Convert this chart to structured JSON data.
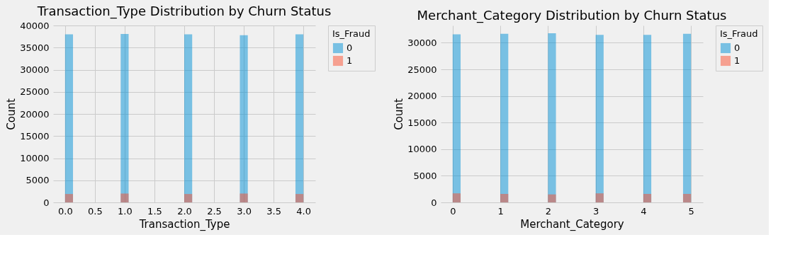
{
  "chart_data": [
    {
      "type": "histogram",
      "title": "Transaction_Type Distribution by Churn Status",
      "xlabel": "Transaction_Type",
      "ylabel": "Count",
      "legend_title": "Is_Fraud",
      "bins": [
        0,
        0.1333,
        0.2667,
        0.4,
        0.5333,
        0.6667,
        0.8,
        0.9333,
        1.0667,
        1.2,
        1.3333,
        1.4667,
        1.6,
        1.7333,
        1.8667,
        2,
        2.1333,
        2.2667,
        2.4,
        2.5333,
        2.6667,
        2.8,
        2.9333,
        3.0667,
        3.2,
        3.3333,
        3.4667,
        3.6,
        3.7333,
        3.8667,
        4
      ],
      "series": [
        {
          "name": "0",
          "color": "#008fd5",
          "values": [
            38000,
            0,
            0,
            0,
            0,
            0,
            0,
            38100,
            0,
            0,
            0,
            0,
            0,
            0,
            0,
            38000,
            0,
            0,
            0,
            0,
            0,
            0,
            37800,
            0,
            0,
            0,
            0,
            0,
            0,
            38000
          ]
        },
        {
          "name": "1",
          "color": "#fc4f30",
          "values": [
            1900,
            0,
            0,
            0,
            0,
            0,
            0,
            2000,
            0,
            0,
            0,
            0,
            0,
            0,
            0,
            1900,
            0,
            0,
            0,
            0,
            0,
            0,
            2000,
            0,
            0,
            0,
            0,
            0,
            0,
            1900
          ]
        }
      ],
      "xlim": [
        -0.2,
        4.2
      ],
      "xticks": [
        {
          "value": 0,
          "label": "0.0"
        },
        0.5,
        {
          "value": 1,
          "label": "1.0"
        },
        1.5,
        {
          "value": 2,
          "label": "2.0"
        },
        2.5,
        {
          "value": 3,
          "label": "3.0"
        },
        3.5,
        {
          "value": 4,
          "label": "4.0"
        }
      ],
      "ylim": [
        0,
        40000
      ],
      "yticks": [
        0,
        5000,
        10000,
        15000,
        20000,
        25000,
        30000,
        35000,
        40000
      ],
      "grid": true,
      "legend": "top right"
    },
    {
      "type": "histogram",
      "title": "Merchant_Category Distribution by Churn Status",
      "xlabel": "Merchant_Category",
      "ylabel": "Count",
      "legend_title": "Is_Fraud",
      "bins": [
        0,
        0.1667,
        0.3333,
        0.5,
        0.6667,
        0.8333,
        1,
        1.1667,
        1.3333,
        1.5,
        1.6667,
        1.8333,
        2,
        2.1667,
        2.3333,
        2.5,
        2.6667,
        2.8333,
        3,
        3.1667,
        3.3333,
        3.5,
        3.6667,
        3.8333,
        4,
        4.1667,
        4.3333,
        4.5,
        4.6667,
        4.8333,
        5
      ],
      "series": [
        {
          "name": "0",
          "color": "#008fd5",
          "values": [
            31600,
            0,
            0,
            0,
            0,
            0,
            31700,
            0,
            0,
            0,
            0,
            0,
            31800,
            0,
            0,
            0,
            0,
            0,
            31500,
            0,
            0,
            0,
            0,
            0,
            31500,
            0,
            0,
            0,
            0,
            31700
          ]
        },
        {
          "name": "1",
          "color": "#fc4f30",
          "values": [
            1700,
            0,
            0,
            0,
            0,
            0,
            1600,
            0,
            0,
            0,
            0,
            0,
            1500,
            0,
            0,
            0,
            0,
            0,
            1700,
            0,
            0,
            0,
            0,
            0,
            1600,
            0,
            0,
            0,
            0,
            1600
          ]
        }
      ],
      "xlim": [
        -0.25,
        5.25
      ],
      "xticks": [
        0,
        1,
        2,
        3,
        4,
        5
      ],
      "ylim": [
        0,
        33250
      ],
      "yticks": [
        0,
        5000,
        10000,
        15000,
        20000,
        25000,
        30000
      ],
      "grid": true,
      "legend": "top right"
    }
  ]
}
